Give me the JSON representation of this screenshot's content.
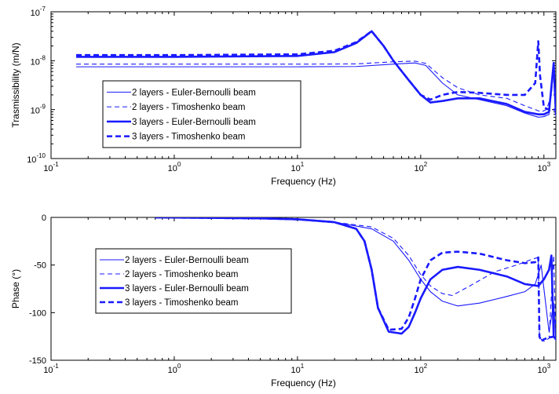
{
  "chart_data": [
    {
      "type": "line",
      "xlabel": "Frequency (Hz)",
      "ylabel": "Trasmissibility (m/N)",
      "xscale": "log",
      "yscale": "log",
      "xlim": [
        0.1,
        1250
      ],
      "ylim": [
        1e-10,
        1e-07
      ],
      "x_ticks": [
        {
          "value": 0.1,
          "base": "10",
          "exp": "-1"
        },
        {
          "value": 1,
          "base": "10",
          "exp": "0"
        },
        {
          "value": 10,
          "base": "10",
          "exp": "1"
        },
        {
          "value": 100,
          "base": "10",
          "exp": "2"
        },
        {
          "value": 1000,
          "base": "10",
          "exp": "3"
        }
      ],
      "y_ticks": [
        {
          "value": 1e-10,
          "base": "10",
          "exp": "-10"
        },
        {
          "value": 1e-09,
          "base": "10",
          "exp": "-9"
        },
        {
          "value": 1e-08,
          "base": "10",
          "exp": "-8"
        },
        {
          "value": 1e-07,
          "base": "10",
          "exp": "-7"
        }
      ],
      "legend_position": "lower-left",
      "series": [
        {
          "name": "2 layers - Euler-Bernoulli beam",
          "color": "#1a1aff",
          "style": "thin-solid",
          "x": [
            0.16,
            1,
            10,
            30,
            60,
            90,
            110,
            150,
            200,
            300,
            500,
            700,
            900,
            1000,
            1100,
            1200,
            1250
          ],
          "y": [
            7.5e-09,
            7.5e-09,
            7.5e-09,
            7.6e-09,
            8.5e-09,
            9e-09,
            8e-09,
            3.5e-09,
            2e-09,
            1.6e-09,
            1.2e-09,
            8.5e-10,
            7e-10,
            7.2e-10,
            8e-10,
            9e-09,
            7e-10
          ]
        },
        {
          "name": "2 layers - Timoshenko beam",
          "color": "#1a1aff",
          "style": "thin-dashed",
          "x": [
            0.16,
            1,
            10,
            30,
            60,
            90,
            110,
            150,
            200,
            300,
            500,
            700,
            850,
            950,
            1050,
            1150,
            1200,
            1250
          ],
          "y": [
            8.5e-09,
            8.5e-09,
            8.5e-09,
            8.6e-09,
            9.5e-09,
            9.8e-09,
            8.8e-09,
            4.5e-09,
            2.8e-09,
            2e-09,
            1.7e-09,
            1.2e-09,
            1e-09,
            9e-10,
            1e-09,
            2e-09,
            7e-09,
            1e-09
          ]
        },
        {
          "name": "3 layers - Euler-Bernoulli beam",
          "color": "#1a1aff",
          "style": "thick-solid",
          "x": [
            0.16,
            1,
            10,
            20,
            30,
            40,
            50,
            60,
            80,
            100,
            120,
            150,
            200,
            300,
            500,
            700,
            900,
            1000,
            1100,
            1200,
            1250
          ],
          "y": [
            1.2e-08,
            1.2e-08,
            1.25e-08,
            1.5e-08,
            2.3e-08,
            4e-08,
            2e-08,
            1e-08,
            4e-09,
            2e-09,
            1.4e-09,
            1.5e-09,
            1.7e-09,
            1.7e-09,
            1.3e-09,
            9e-10,
            8e-10,
            8e-10,
            9e-10,
            9e-09,
            8e-10
          ]
        },
        {
          "name": "3 layers - Timoshenko beam",
          "color": "#1a1aff",
          "style": "thick-dashed",
          "x": [
            0.16,
            1,
            10,
            20,
            30,
            40,
            50,
            60,
            80,
            100,
            120,
            150,
            200,
            300,
            500,
            700,
            850,
            900,
            930,
            1000,
            1100,
            1250
          ],
          "y": [
            1.3e-08,
            1.3e-08,
            1.35e-08,
            1.6e-08,
            2.4e-08,
            4e-08,
            2e-08,
            1e-08,
            4e-09,
            2e-09,
            1.6e-09,
            2e-09,
            2.3e-09,
            2.2e-09,
            2e-09,
            2e-09,
            3.5e-09,
            2.5e-08,
            5e-09,
            1.1e-09,
            1e-09,
            1e-09
          ]
        }
      ]
    },
    {
      "type": "line",
      "xlabel": "Frequency (Hz)",
      "ylabel": "Phase (°)",
      "xscale": "log",
      "yscale": "linear",
      "xlim": [
        0.1,
        1250
      ],
      "ylim": [
        -150,
        0
      ],
      "x_ticks": [
        {
          "value": 0.1,
          "base": "10",
          "exp": "-1"
        },
        {
          "value": 1,
          "base": "10",
          "exp": "0"
        },
        {
          "value": 10,
          "base": "10",
          "exp": "1"
        },
        {
          "value": 100,
          "base": "10",
          "exp": "2"
        },
        {
          "value": 1000,
          "base": "10",
          "exp": "3"
        }
      ],
      "y_ticks": [
        {
          "value": 0,
          "label": "0"
        },
        {
          "value": -50,
          "label": "-50"
        },
        {
          "value": -100,
          "label": "-100"
        },
        {
          "value": -150,
          "label": "-150"
        }
      ],
      "legend_position": "upper-left",
      "series": [
        {
          "name": "2 layers - Euler-Bernoulli beam",
          "color": "#1a1aff",
          "style": "thin-solid",
          "x": [
            0.7,
            2,
            5,
            10,
            20,
            40,
            60,
            80,
            100,
            120,
            150,
            200,
            300,
            500,
            700,
            850,
            900,
            950,
            1000,
            1100,
            1200,
            1250
          ],
          "y": [
            0,
            -0.5,
            -1,
            -2,
            -5,
            -12,
            -25,
            -45,
            -65,
            -78,
            -88,
            -93,
            -90,
            -83,
            -78,
            -70,
            -60,
            -50,
            -75,
            -120,
            -90,
            -130
          ]
        },
        {
          "name": "2 layers - Timoshenko beam",
          "color": "#1a1aff",
          "style": "thin-dashed",
          "x": [
            0.7,
            2,
            5,
            10,
            20,
            40,
            60,
            80,
            100,
            120,
            150,
            180,
            250,
            400,
            600,
            800,
            900,
            920,
            950,
            1000,
            1100,
            1200,
            1250
          ],
          "y": [
            0,
            -0.5,
            -1,
            -2,
            -5,
            -10,
            -22,
            -40,
            -60,
            -72,
            -80,
            -82,
            -72,
            -57,
            -50,
            -44,
            -42,
            -125,
            -128,
            -130,
            -127,
            -40,
            -128
          ]
        },
        {
          "name": "3 layers - Euler-Bernoulli beam",
          "color": "#1a1aff",
          "style": "thick-solid",
          "x": [
            0.7,
            2,
            5,
            10,
            20,
            30,
            35,
            40,
            45,
            55,
            70,
            80,
            90,
            100,
            120,
            150,
            200,
            300,
            500,
            700,
            900,
            1000,
            1100,
            1150,
            1200,
            1250
          ],
          "y": [
            0,
            -0.5,
            -1,
            -2,
            -5,
            -12,
            -25,
            -55,
            -95,
            -120,
            -122,
            -115,
            -100,
            -85,
            -65,
            -55,
            -52,
            -55,
            -62,
            -70,
            -72,
            -65,
            -55,
            -40,
            -125,
            -128
          ]
        },
        {
          "name": "3 layers - Timoshenko beam",
          "color": "#1a1aff",
          "style": "thick-dashed",
          "x": [
            0.7,
            2,
            5,
            10,
            20,
            30,
            35,
            40,
            45,
            55,
            70,
            80,
            90,
            100,
            120,
            150,
            200,
            300,
            500,
            700,
            850,
            900,
            920,
            950,
            1000,
            1100,
            1250
          ],
          "y": [
            0,
            -0.5,
            -1,
            -2,
            -5,
            -12,
            -25,
            -55,
            -95,
            -118,
            -117,
            -105,
            -85,
            -65,
            -45,
            -37,
            -36,
            -38,
            -45,
            -48,
            -47,
            -42,
            -125,
            -130,
            -128,
            -126,
            -125
          ]
        }
      ]
    }
  ]
}
